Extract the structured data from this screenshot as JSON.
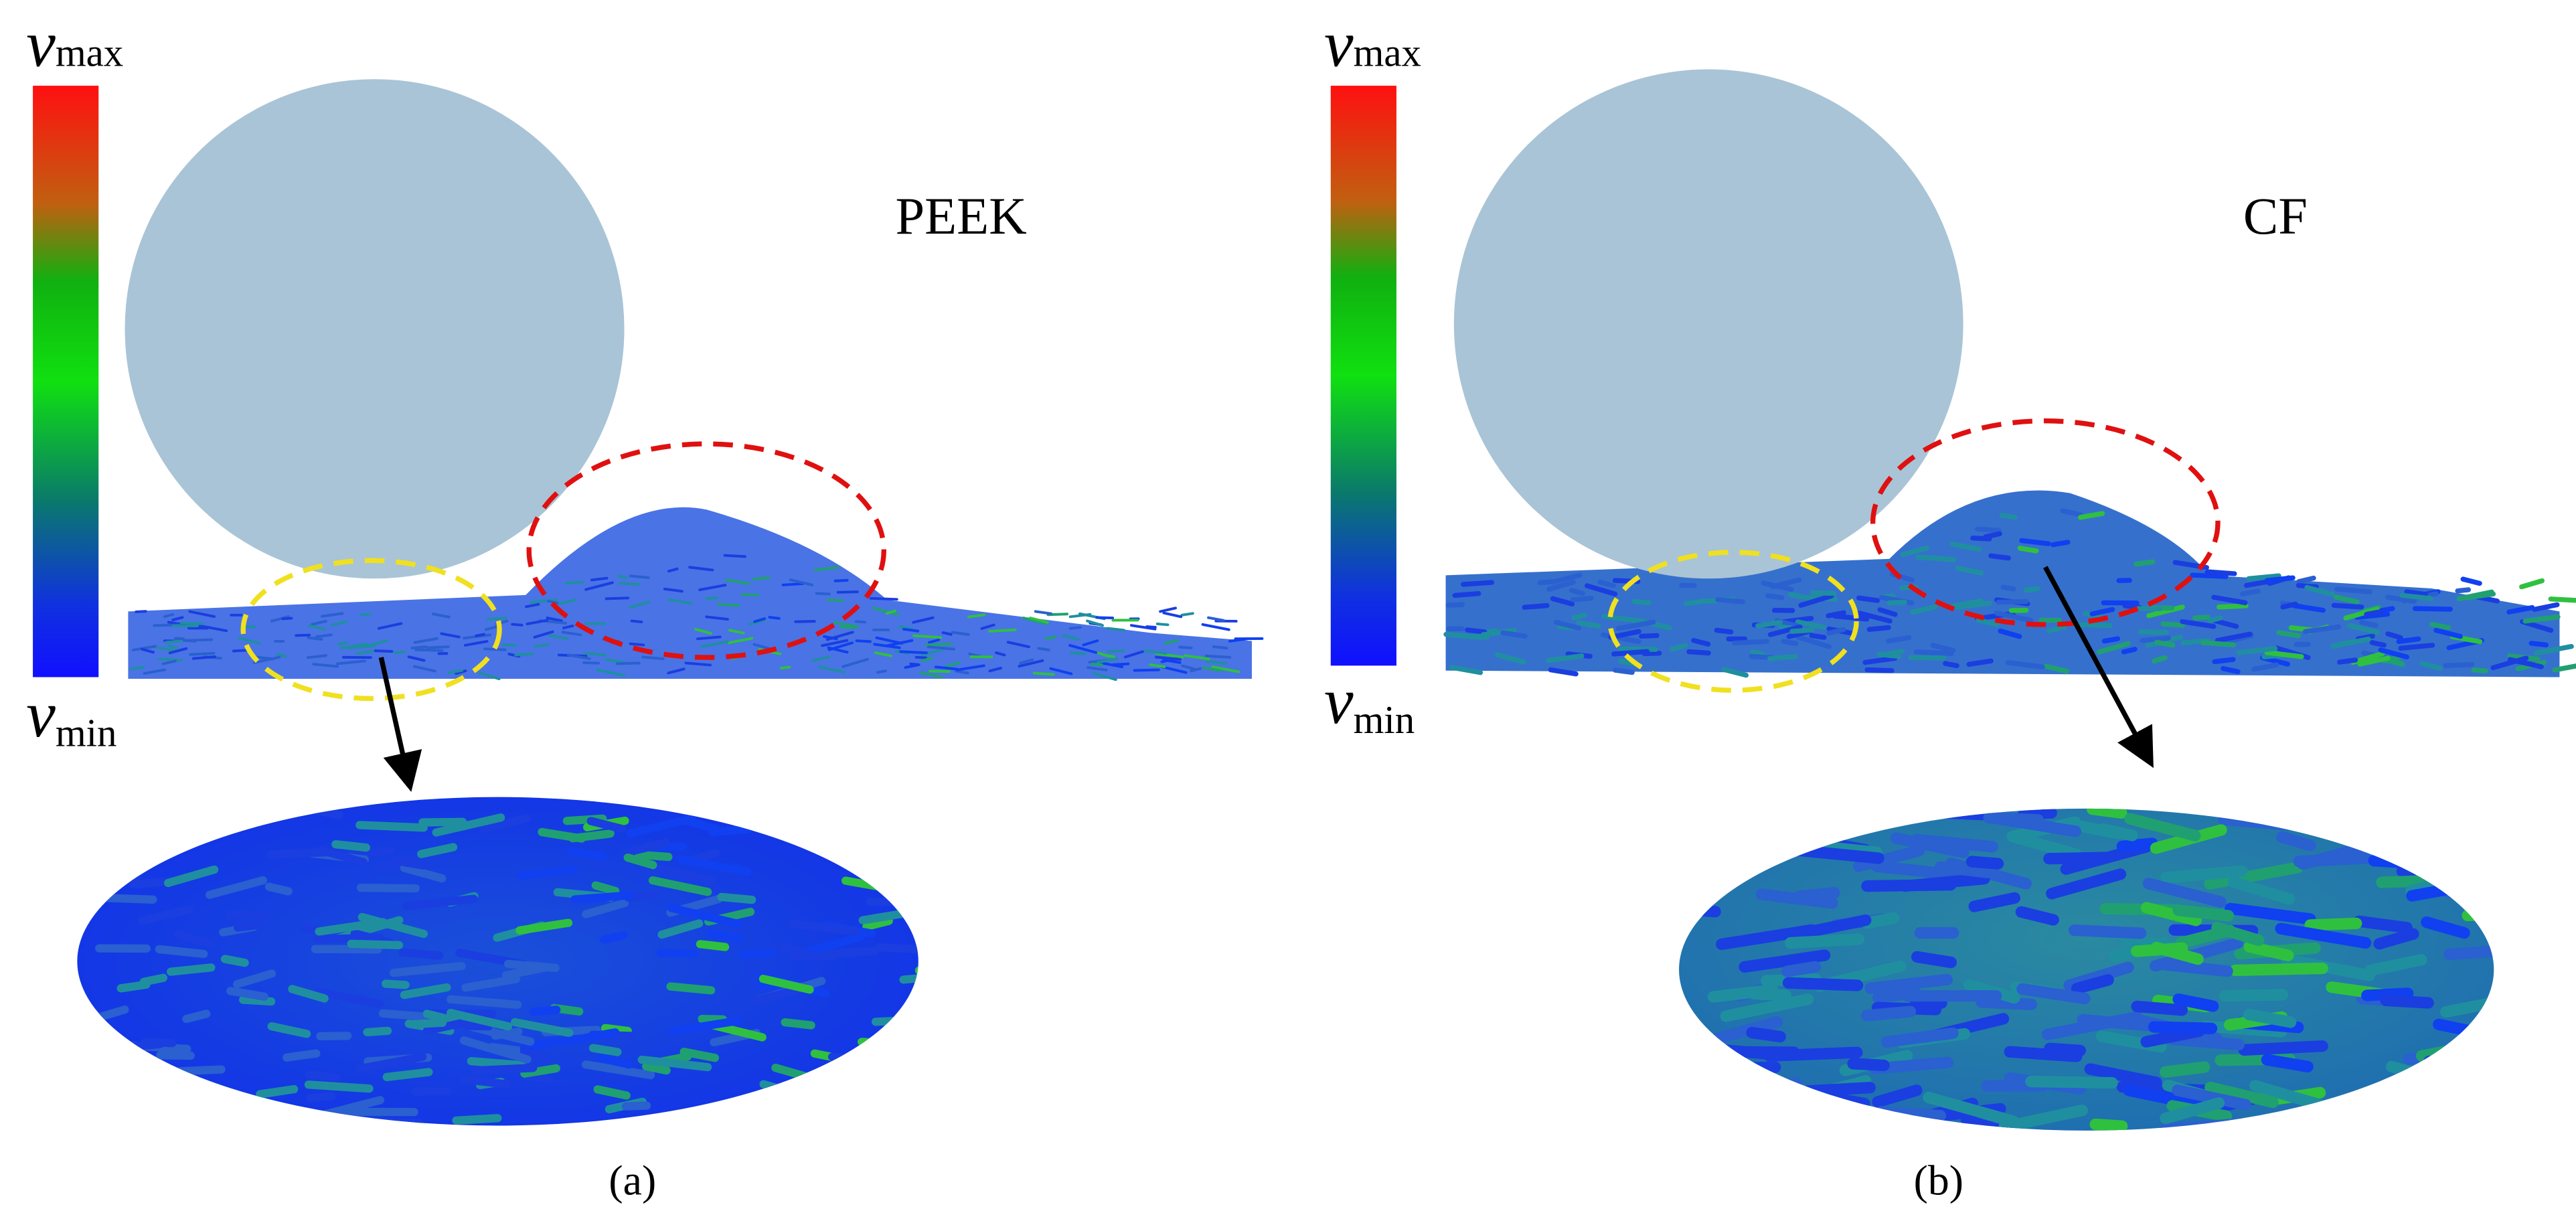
{
  "panels": [
    {
      "label": "(a)",
      "material": "PEEK",
      "colorbar": {
        "max": {
          "symbol": "v",
          "subscript": "max"
        },
        "min": {
          "symbol": "v",
          "subscript": "min"
        }
      }
    },
    {
      "label": "(b)",
      "material": "CF",
      "colorbar": {
        "max": {
          "symbol": "v",
          "subscript": "max"
        },
        "min": {
          "symbol": "v",
          "subscript": "min"
        }
      }
    }
  ]
}
